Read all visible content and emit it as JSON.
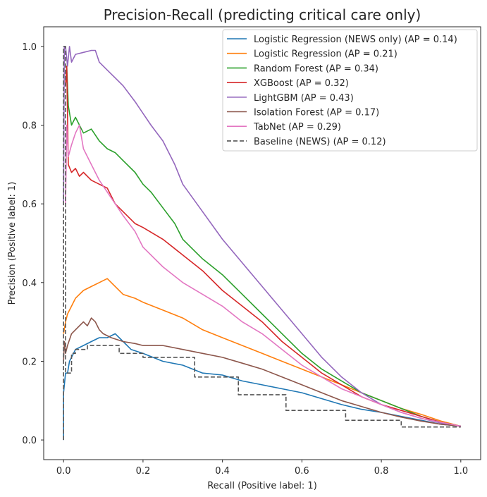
{
  "chart_data": {
    "type": "line",
    "title": "Precision-Recall (predicting critical care only)",
    "xlabel": "Recall (Positive label: 1)",
    "ylabel": "Precision (Positive label: 1)",
    "xlim": [
      -0.05,
      1.05
    ],
    "ylim": [
      -0.05,
      1.05
    ],
    "xticks": [
      "0.0",
      "0.2",
      "0.4",
      "0.6",
      "0.8",
      "1.0"
    ],
    "yticks": [
      "0.0",
      "0.2",
      "0.4",
      "0.6",
      "0.8",
      "1.0"
    ],
    "grid": false,
    "legend_position": "top-right",
    "series": [
      {
        "name": "Logistic Regression (NEWS only) (AP = 0.14)",
        "color": "#1f77b4",
        "style": "solid",
        "x": [
          0,
          0,
          0.005,
          0.01,
          0.015,
          0.02,
          0.03,
          0.05,
          0.07,
          0.09,
          0.11,
          0.13,
          0.15,
          0.17,
          0.2,
          0.25,
          0.3,
          0.35,
          0.4,
          0.45,
          0.5,
          0.55,
          0.6,
          0.65,
          0.7,
          0.75,
          0.8,
          0.85,
          0.9,
          0.95,
          1.0
        ],
        "y": [
          0,
          0.12,
          0.17,
          0.17,
          0.2,
          0.21,
          0.23,
          0.24,
          0.25,
          0.26,
          0.26,
          0.27,
          0.25,
          0.23,
          0.22,
          0.2,
          0.19,
          0.17,
          0.165,
          0.15,
          0.14,
          0.13,
          0.12,
          0.105,
          0.09,
          0.078,
          0.07,
          0.06,
          0.05,
          0.04,
          0.035
        ]
      },
      {
        "name": "Logistic Regression (AP = 0.21)",
        "color": "#ff7f0e",
        "style": "solid",
        "x": [
          0,
          0.005,
          0.01,
          0.02,
          0.03,
          0.05,
          0.07,
          0.09,
          0.11,
          0.13,
          0.15,
          0.18,
          0.2,
          0.25,
          0.3,
          0.35,
          0.4,
          0.45,
          0.5,
          0.55,
          0.6,
          0.65,
          0.7,
          0.75,
          0.8,
          0.85,
          0.9,
          0.95,
          1.0
        ],
        "y": [
          0.27,
          0.3,
          0.32,
          0.34,
          0.36,
          0.38,
          0.39,
          0.4,
          0.41,
          0.39,
          0.37,
          0.36,
          0.35,
          0.33,
          0.31,
          0.28,
          0.26,
          0.24,
          0.22,
          0.2,
          0.18,
          0.16,
          0.14,
          0.12,
          0.1,
          0.08,
          0.065,
          0.048,
          0.035
        ]
      },
      {
        "name": "Random Forest (AP = 0.34)",
        "color": "#2ca02c",
        "style": "solid",
        "x": [
          0.005,
          0.008,
          0.012,
          0.02,
          0.03,
          0.05,
          0.07,
          0.09,
          0.11,
          0.13,
          0.15,
          0.18,
          0.2,
          0.22,
          0.25,
          0.28,
          0.3,
          0.35,
          0.4,
          0.45,
          0.5,
          0.55,
          0.6,
          0.65,
          0.7,
          0.75,
          0.8,
          0.85,
          0.9,
          0.95,
          1.0
        ],
        "y": [
          0.9,
          0.95,
          0.85,
          0.8,
          0.82,
          0.78,
          0.79,
          0.76,
          0.74,
          0.73,
          0.71,
          0.68,
          0.65,
          0.63,
          0.59,
          0.55,
          0.51,
          0.46,
          0.42,
          0.37,
          0.32,
          0.27,
          0.22,
          0.18,
          0.15,
          0.12,
          0.1,
          0.08,
          0.06,
          0.045,
          0.035
        ]
      },
      {
        "name": "XGBoost (AP = 0.32)",
        "color": "#d62728",
        "style": "solid",
        "x": [
          0.005,
          0.008,
          0.012,
          0.02,
          0.03,
          0.04,
          0.05,
          0.07,
          0.09,
          0.11,
          0.13,
          0.15,
          0.18,
          0.2,
          0.25,
          0.3,
          0.35,
          0.4,
          0.45,
          0.5,
          0.55,
          0.6,
          0.65,
          0.7,
          0.75,
          0.8,
          0.85,
          0.9,
          0.95,
          1.0
        ],
        "y": [
          0.9,
          0.95,
          0.7,
          0.68,
          0.69,
          0.67,
          0.68,
          0.66,
          0.65,
          0.64,
          0.6,
          0.58,
          0.55,
          0.54,
          0.51,
          0.47,
          0.43,
          0.38,
          0.34,
          0.3,
          0.25,
          0.21,
          0.17,
          0.14,
          0.11,
          0.09,
          0.075,
          0.06,
          0.045,
          0.035
        ]
      },
      {
        "name": "LightGBM (AP = 0.43)",
        "color": "#9467bd",
        "style": "solid",
        "x": [
          0.0,
          0.002,
          0.005,
          0.01,
          0.015,
          0.02,
          0.03,
          0.05,
          0.07,
          0.08,
          0.09,
          0.11,
          0.13,
          0.15,
          0.18,
          0.2,
          0.22,
          0.25,
          0.28,
          0.3,
          0.35,
          0.4,
          0.45,
          0.5,
          0.55,
          0.6,
          0.65,
          0.7,
          0.75,
          0.8,
          0.85,
          0.9,
          0.95,
          1.0
        ],
        "y": [
          0.6,
          1.0,
          1.0,
          0.95,
          1.0,
          0.96,
          0.98,
          0.985,
          0.99,
          0.99,
          0.96,
          0.94,
          0.92,
          0.9,
          0.86,
          0.83,
          0.8,
          0.76,
          0.7,
          0.65,
          0.58,
          0.51,
          0.45,
          0.39,
          0.33,
          0.27,
          0.21,
          0.16,
          0.12,
          0.09,
          0.07,
          0.055,
          0.043,
          0.035
        ]
      },
      {
        "name": "Isolation Forest (AP = 0.17)",
        "color": "#8c564b",
        "style": "solid",
        "x": [
          0,
          0.002,
          0.005,
          0.01,
          0.02,
          0.03,
          0.04,
          0.05,
          0.06,
          0.07,
          0.08,
          0.09,
          0.1,
          0.12,
          0.15,
          0.18,
          0.2,
          0.25,
          0.3,
          0.35,
          0.4,
          0.45,
          0.5,
          0.55,
          0.6,
          0.65,
          0.7,
          0.75,
          0.8,
          0.85,
          0.9,
          0.95,
          1.0
        ],
        "y": [
          0.2,
          0.25,
          0.22,
          0.24,
          0.27,
          0.28,
          0.29,
          0.3,
          0.29,
          0.31,
          0.3,
          0.28,
          0.27,
          0.26,
          0.25,
          0.245,
          0.24,
          0.24,
          0.23,
          0.22,
          0.21,
          0.195,
          0.18,
          0.16,
          0.14,
          0.12,
          0.1,
          0.085,
          0.07,
          0.058,
          0.048,
          0.04,
          0.035
        ]
      },
      {
        "name": "TabNet (AP = 0.29)",
        "color": "#e377c2",
        "style": "solid",
        "x": [
          0.005,
          0.008,
          0.012,
          0.02,
          0.03,
          0.04,
          0.05,
          0.07,
          0.09,
          0.11,
          0.13,
          0.15,
          0.18,
          0.2,
          0.25,
          0.3,
          0.35,
          0.4,
          0.45,
          0.5,
          0.55,
          0.6,
          0.65,
          0.7,
          0.75,
          0.8,
          0.85,
          0.9,
          0.95,
          1.0
        ],
        "y": [
          0.6,
          0.8,
          0.72,
          0.75,
          0.78,
          0.8,
          0.74,
          0.7,
          0.66,
          0.63,
          0.6,
          0.57,
          0.53,
          0.49,
          0.44,
          0.4,
          0.37,
          0.34,
          0.3,
          0.27,
          0.23,
          0.19,
          0.16,
          0.13,
          0.11,
          0.09,
          0.07,
          0.055,
          0.045,
          0.035
        ]
      },
      {
        "name": "Baseline (NEWS) (AP = 0.12)",
        "color": "#555555",
        "style": "dashed",
        "x": [
          0,
          0,
          0.005,
          0.005,
          0.02,
          0.02,
          0.03,
          0.03,
          0.06,
          0.06,
          0.14,
          0.14,
          0.2,
          0.2,
          0.33,
          0.33,
          0.44,
          0.44,
          0.56,
          0.56,
          0.71,
          0.71,
          0.85,
          0.85,
          1.0
        ],
        "y": [
          0,
          1.0,
          1.0,
          0.17,
          0.17,
          0.22,
          0.22,
          0.23,
          0.23,
          0.24,
          0.24,
          0.22,
          0.22,
          0.21,
          0.21,
          0.16,
          0.16,
          0.115,
          0.115,
          0.075,
          0.075,
          0.05,
          0.05,
          0.033,
          0.033
        ]
      }
    ]
  }
}
